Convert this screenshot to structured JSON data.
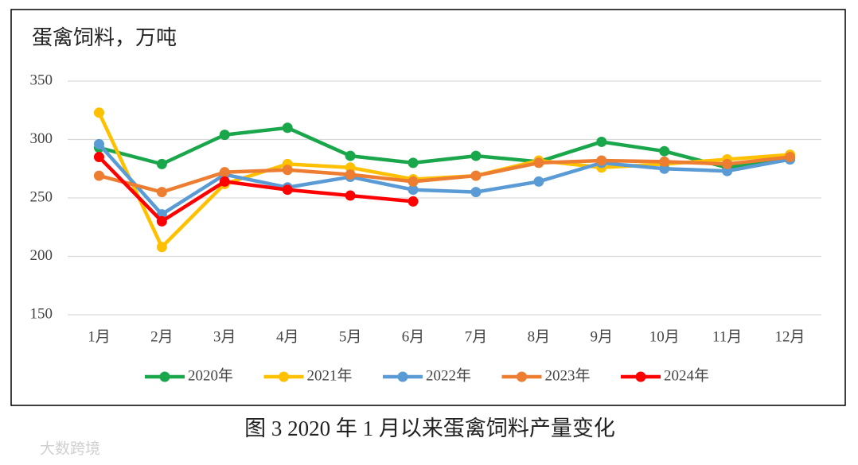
{
  "chart_data": {
    "type": "line",
    "title": "蛋禽饲料，万吨",
    "caption": "图 3  2020 年 1 月以来蛋禽饲料产量变化",
    "watermark": "大数跨境",
    "categories": [
      "1月",
      "2月",
      "3月",
      "4月",
      "5月",
      "6月",
      "7月",
      "8月",
      "9月",
      "10月",
      "11月",
      "12月"
    ],
    "series": [
      {
        "name": "2020年",
        "color": "#1aa64a",
        "values": [
          293,
          279,
          304,
          310,
          286,
          280,
          286,
          281,
          298,
          290,
          276,
          283
        ]
      },
      {
        "name": "2021年",
        "color": "#ffc000",
        "values": [
          323,
          208,
          262,
          279,
          276,
          266,
          269,
          282,
          276,
          279,
          283,
          287
        ]
      },
      {
        "name": "2022年",
        "color": "#5b9bd5",
        "values": [
          296,
          236,
          270,
          259,
          268,
          257,
          255,
          264,
          280,
          275,
          273,
          283
        ]
      },
      {
        "name": "2023年",
        "color": "#ed7d31",
        "values": [
          269,
          255,
          272,
          274,
          270,
          264,
          269,
          280,
          282,
          281,
          279,
          285
        ]
      },
      {
        "name": "2024年",
        "color": "#ff0000",
        "values": [
          285,
          230,
          264,
          257,
          252,
          247,
          null,
          null,
          null,
          null,
          null,
          null
        ]
      }
    ],
    "ylim": [
      150,
      350
    ],
    "yticks": [
      150,
      200,
      250,
      300,
      350
    ],
    "grid": true,
    "legend": "bottom"
  }
}
